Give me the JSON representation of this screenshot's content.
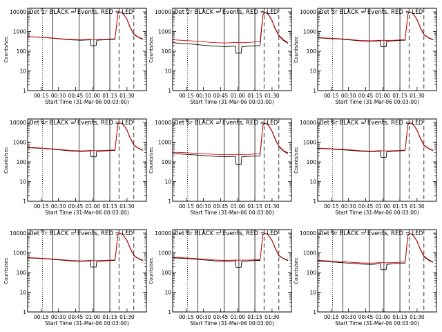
{
  "colors": {
    "events": "#000000",
    "lld": "#e00000",
    "axis": "#000000",
    "background": "#ffffff"
  },
  "panel_defaults": {
    "title_suffix": "BLACK = Events, RED = LLD",
    "xlabel": "Start Time (31-Mar-06 00:03:00)",
    "ylabel": "Counts/sec",
    "y_scale": "log",
    "ylim": [
      1,
      15000
    ],
    "y_ticks": [
      1,
      10,
      100,
      1000,
      10000
    ],
    "y_tick_labels": [
      "1",
      "10",
      "100",
      "1000",
      "10000"
    ],
    "x_unit": "minutes after 00:00",
    "xlim": [
      3,
      107
    ],
    "x_ticks": [
      15,
      30,
      45,
      60,
      75,
      90
    ],
    "x_tick_labels": [
      "00:15",
      "00:30",
      "00:45",
      "01:00",
      "01:15",
      "01:30"
    ],
    "markers": [
      {
        "x": 16,
        "style": "dotted"
      },
      {
        "x": 25,
        "style": "solid"
      },
      {
        "x": 48,
        "style": "solid"
      },
      {
        "x": 61,
        "style": "solid"
      },
      {
        "x": 75,
        "style": "solid"
      },
      {
        "x": 83,
        "style": "dashed"
      },
      {
        "x": 96,
        "style": "dashed"
      }
    ]
  },
  "chart_data": [
    {
      "type": "line",
      "title": "Det 1r",
      "ylabel": "Counts/sec",
      "series": [
        {
          "name": "Events",
          "x": [
            3,
            10,
            20,
            30,
            40,
            50,
            58,
            58.5,
            63,
            63.5,
            70,
            77,
            79.5,
            82,
            84,
            86,
            88,
            90,
            93,
            96,
            100,
            104
          ],
          "y": [
            550,
            520,
            480,
            430,
            380,
            360,
            380,
            190,
            190,
            360,
            380,
            400,
            400,
            8000,
            9500,
            8500,
            6000,
            4000,
            1500,
            700,
            500,
            400
          ]
        },
        {
          "name": "LLD",
          "x": [
            3,
            10,
            20,
            30,
            40,
            50,
            58,
            63,
            70,
            77,
            79.5,
            82,
            84,
            86,
            88,
            90,
            93,
            96,
            100,
            104
          ],
          "y": [
            560,
            530,
            490,
            440,
            400,
            380,
            400,
            390,
            400,
            420,
            420,
            8200,
            9700,
            8700,
            6200,
            4200,
            1600,
            750,
            520,
            420
          ]
        }
      ]
    },
    {
      "type": "line",
      "title": "Det 2r",
      "ylabel": "Counts/sec",
      "series": [
        {
          "name": "Events",
          "x": [
            3,
            10,
            20,
            30,
            40,
            50,
            58,
            58.5,
            63,
            63.5,
            70,
            77,
            79.5,
            82,
            84,
            86,
            88,
            90,
            93,
            96,
            100,
            104
          ],
          "y": [
            270,
            250,
            230,
            200,
            180,
            170,
            180,
            80,
            80,
            170,
            180,
            190,
            190,
            7000,
            9000,
            8000,
            5500,
            3500,
            1300,
            600,
            350,
            250
          ]
        },
        {
          "name": "LLD",
          "x": [
            3,
            10,
            20,
            30,
            40,
            50,
            58,
            63,
            70,
            77,
            79.5,
            82,
            84,
            86,
            88,
            90,
            93,
            96,
            100,
            104
          ],
          "y": [
            380,
            360,
            330,
            300,
            270,
            260,
            280,
            270,
            280,
            300,
            300,
            7500,
            9300,
            8400,
            5800,
            3700,
            1400,
            650,
            380,
            280
          ]
        }
      ]
    },
    {
      "type": "line",
      "title": "Det 3r",
      "ylabel": "Counts/sec",
      "series": [
        {
          "name": "Events",
          "x": [
            3,
            10,
            20,
            30,
            40,
            50,
            58,
            58.5,
            63,
            63.5,
            70,
            77,
            79.5,
            82,
            84,
            86,
            88,
            90,
            93,
            96,
            100,
            104
          ],
          "y": [
            480,
            450,
            420,
            380,
            330,
            320,
            340,
            170,
            170,
            320,
            340,
            360,
            360,
            7800,
            9400,
            8400,
            5900,
            3900,
            1500,
            680,
            470,
            370
          ]
        },
        {
          "name": "LLD",
          "x": [
            3,
            10,
            20,
            30,
            40,
            50,
            58,
            63,
            70,
            77,
            79.5,
            82,
            84,
            86,
            88,
            90,
            93,
            96,
            100,
            104
          ],
          "y": [
            500,
            470,
            440,
            400,
            350,
            340,
            360,
            350,
            360,
            380,
            380,
            8000,
            9600,
            8600,
            6100,
            4100,
            1600,
            720,
            490,
            390
          ]
        }
      ]
    },
    {
      "type": "line",
      "title": "Det 4r",
      "ylabel": "Counts/sec",
      "series": [
        {
          "name": "Events",
          "x": [
            3,
            10,
            20,
            30,
            40,
            50,
            58,
            58.5,
            63,
            63.5,
            70,
            77,
            79.5,
            82,
            84,
            86,
            88,
            90,
            93,
            96,
            100,
            104
          ],
          "y": [
            520,
            500,
            460,
            410,
            360,
            340,
            360,
            180,
            180,
            340,
            360,
            380,
            380,
            8000,
            9500,
            8500,
            6000,
            4000,
            1500,
            700,
            480,
            380
          ]
        },
        {
          "name": "LLD",
          "x": [
            3,
            10,
            20,
            30,
            40,
            50,
            58,
            63,
            70,
            77,
            79.5,
            82,
            84,
            86,
            88,
            90,
            93,
            96,
            100,
            104
          ],
          "y": [
            540,
            520,
            480,
            430,
            380,
            360,
            380,
            370,
            380,
            400,
            400,
            8200,
            9700,
            8700,
            6200,
            4200,
            1600,
            740,
            500,
            400
          ]
        }
      ]
    },
    {
      "type": "line",
      "title": "Det 5r",
      "ylabel": "Counts/sec",
      "series": [
        {
          "name": "Events",
          "x": [
            3,
            10,
            20,
            30,
            40,
            50,
            58,
            58.5,
            63,
            63.5,
            70,
            77,
            79.5,
            82,
            84,
            86,
            88,
            90,
            93,
            96,
            100,
            104
          ],
          "y": [
            260,
            250,
            230,
            210,
            190,
            180,
            190,
            75,
            75,
            180,
            190,
            200,
            200,
            7000,
            9000,
            8000,
            5500,
            3500,
            1300,
            600,
            350,
            260
          ]
        },
        {
          "name": "LLD",
          "x": [
            3,
            10,
            20,
            30,
            40,
            50,
            58,
            63,
            70,
            77,
            79.5,
            82,
            84,
            86,
            88,
            90,
            93,
            96,
            100,
            104
          ],
          "y": [
            310,
            300,
            280,
            260,
            240,
            230,
            240,
            235,
            240,
            255,
            255,
            7400,
            9300,
            8400,
            5800,
            3700,
            1400,
            640,
            380,
            290
          ]
        }
      ]
    },
    {
      "type": "line",
      "title": "Det 6r",
      "ylabel": "Counts/sec",
      "series": [
        {
          "name": "Events",
          "x": [
            3,
            10,
            20,
            30,
            40,
            50,
            58,
            58.5,
            63,
            63.5,
            70,
            77,
            79.5,
            82,
            84,
            86,
            88,
            90,
            93,
            96,
            100,
            104
          ],
          "y": [
            480,
            460,
            430,
            390,
            350,
            330,
            350,
            170,
            170,
            330,
            350,
            370,
            370,
            7900,
            9400,
            8400,
            5900,
            3900,
            1500,
            680,
            470,
            370
          ]
        },
        {
          "name": "LLD",
          "x": [
            3,
            10,
            20,
            30,
            40,
            50,
            58,
            63,
            70,
            77,
            79.5,
            82,
            84,
            86,
            88,
            90,
            93,
            96,
            100,
            104
          ],
          "y": [
            500,
            480,
            450,
            410,
            370,
            350,
            370,
            360,
            370,
            390,
            390,
            8100,
            9600,
            8600,
            6100,
            4100,
            1600,
            720,
            490,
            390
          ]
        }
      ]
    },
    {
      "type": "line",
      "title": "Det 7r",
      "ylabel": "Counts/sec",
      "series": [
        {
          "name": "Events",
          "x": [
            3,
            10,
            20,
            30,
            40,
            50,
            58,
            58.5,
            63,
            63.5,
            70,
            77,
            79.5,
            82,
            84,
            86,
            88,
            90,
            93,
            96,
            100,
            104
          ],
          "y": [
            560,
            530,
            490,
            440,
            390,
            370,
            390,
            190,
            190,
            370,
            390,
            410,
            410,
            8100,
            9600,
            8600,
            6100,
            4100,
            1600,
            720,
            500,
            400
          ]
        },
        {
          "name": "LLD",
          "x": [
            3,
            10,
            20,
            30,
            40,
            50,
            58,
            63,
            70,
            77,
            79.5,
            82,
            84,
            86,
            88,
            90,
            93,
            96,
            100,
            104
          ],
          "y": [
            580,
            550,
            510,
            460,
            410,
            390,
            410,
            400,
            410,
            430,
            430,
            8300,
            9800,
            8800,
            6300,
            4300,
            1700,
            760,
            520,
            420
          ]
        }
      ]
    },
    {
      "type": "line",
      "title": "Det 8r",
      "ylabel": "Counts/sec",
      "series": [
        {
          "name": "Events",
          "x": [
            3,
            10,
            20,
            30,
            40,
            50,
            58,
            58.5,
            63,
            63.5,
            70,
            77,
            79.5,
            82,
            84,
            86,
            88,
            90,
            93,
            96,
            100,
            104
          ],
          "y": [
            560,
            530,
            490,
            440,
            390,
            370,
            390,
            185,
            185,
            370,
            390,
            410,
            410,
            8100,
            9600,
            8600,
            6100,
            4100,
            1600,
            720,
            500,
            400
          ]
        },
        {
          "name": "LLD",
          "x": [
            3,
            10,
            20,
            30,
            40,
            50,
            58,
            63,
            70,
            77,
            79.5,
            82,
            84,
            86,
            88,
            90,
            93,
            96,
            100,
            104
          ],
          "y": [
            600,
            570,
            530,
            480,
            430,
            410,
            430,
            420,
            430,
            450,
            450,
            8300,
            9800,
            8800,
            6300,
            4300,
            1700,
            760,
            520,
            420
          ]
        }
      ]
    },
    {
      "type": "line",
      "title": "Det 9r",
      "ylabel": "Counts/sec",
      "series": [
        {
          "name": "Events",
          "x": [
            3,
            10,
            20,
            30,
            40,
            50,
            58,
            58.5,
            63,
            63.5,
            70,
            77,
            79.5,
            82,
            84,
            86,
            88,
            90,
            93,
            96,
            100,
            104
          ],
          "y": [
            380,
            360,
            330,
            300,
            270,
            260,
            280,
            140,
            140,
            260,
            280,
            300,
            300,
            7600,
            9300,
            8300,
            5800,
            3800,
            1400,
            650,
            420,
            330
          ]
        },
        {
          "name": "LLD",
          "x": [
            3,
            10,
            20,
            30,
            40,
            50,
            58,
            63,
            70,
            77,
            79.5,
            82,
            84,
            86,
            88,
            90,
            93,
            96,
            100,
            104
          ],
          "y": [
            420,
            400,
            370,
            340,
            310,
            300,
            320,
            310,
            320,
            340,
            340,
            7900,
            9500,
            8500,
            6000,
            4000,
            1500,
            700,
            450,
            350
          ]
        }
      ]
    }
  ]
}
